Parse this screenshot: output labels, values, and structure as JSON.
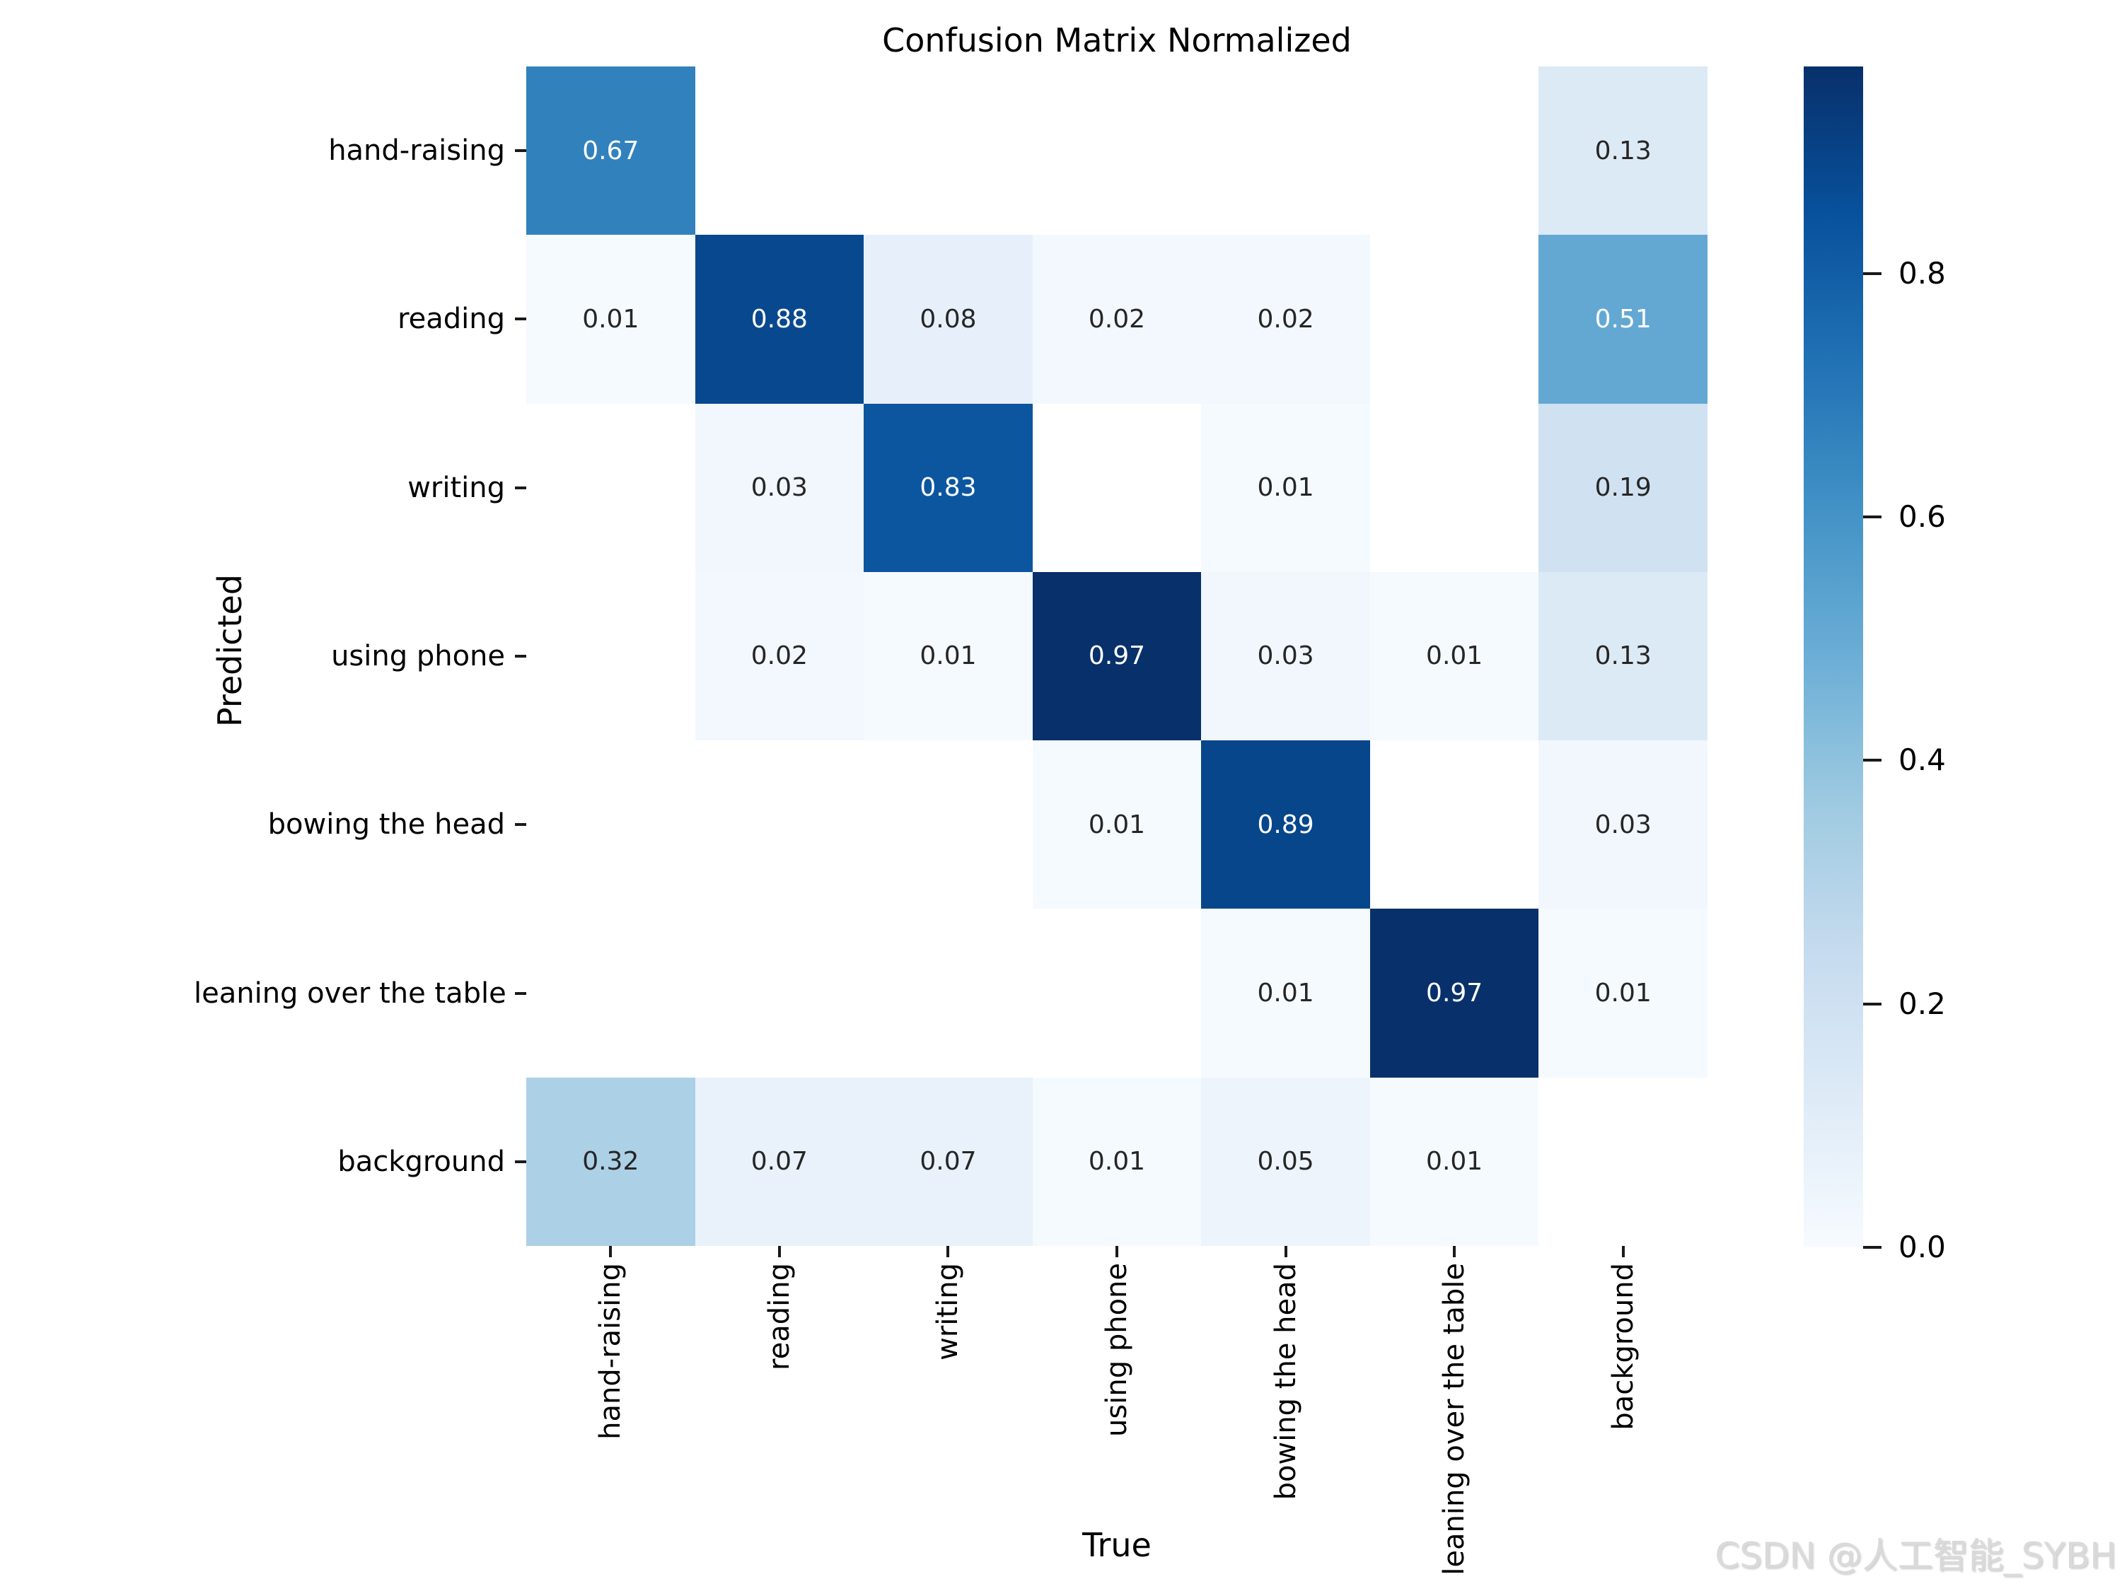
{
  "watermark": "CSDN @人工智能_SYBH",
  "chart_data": {
    "type": "heatmap",
    "title": "Confusion Matrix Normalized",
    "xlabel": "True",
    "ylabel": "Predicted",
    "x_categories": [
      "hand-raising",
      "reading",
      "writing",
      "using phone",
      "bowing the head",
      "leaning over the table",
      "background"
    ],
    "y_categories": [
      "hand-raising",
      "reading",
      "writing",
      "using phone",
      "bowing the head",
      "leaning over the table",
      "background"
    ],
    "rows": [
      [
        0.67,
        null,
        null,
        null,
        null,
        null,
        0.13
      ],
      [
        0.01,
        0.88,
        0.08,
        0.02,
        0.02,
        null,
        0.51
      ],
      [
        null,
        0.03,
        0.83,
        null,
        0.01,
        null,
        0.19
      ],
      [
        null,
        0.02,
        0.01,
        0.97,
        0.03,
        0.01,
        0.13
      ],
      [
        null,
        null,
        null,
        0.01,
        0.89,
        null,
        0.03
      ],
      [
        null,
        null,
        null,
        null,
        0.01,
        0.97,
        0.01
      ],
      [
        0.32,
        0.07,
        0.07,
        0.01,
        0.05,
        0.01,
        null
      ]
    ],
    "colormap": "Blues",
    "vmin": 0.0,
    "vmax": 0.97,
    "empty_cell_color": "#ffffff",
    "cmap_low_color": "#f7fbff",
    "cmap_high_color": "#08306b",
    "annot_dark_text_color": "#262626",
    "annot_light_text_color": "#ffffff",
    "colorbar_ticks": [
      {
        "value": 0.8,
        "label": "0.8"
      },
      {
        "value": 0.6,
        "label": "0.6"
      },
      {
        "value": 0.4,
        "label": "0.4"
      },
      {
        "value": 0.2,
        "label": "0.2"
      },
      {
        "value": 0.0,
        "label": "0.0"
      }
    ],
    "legend_position": "right-colorbar",
    "grid": false
  }
}
